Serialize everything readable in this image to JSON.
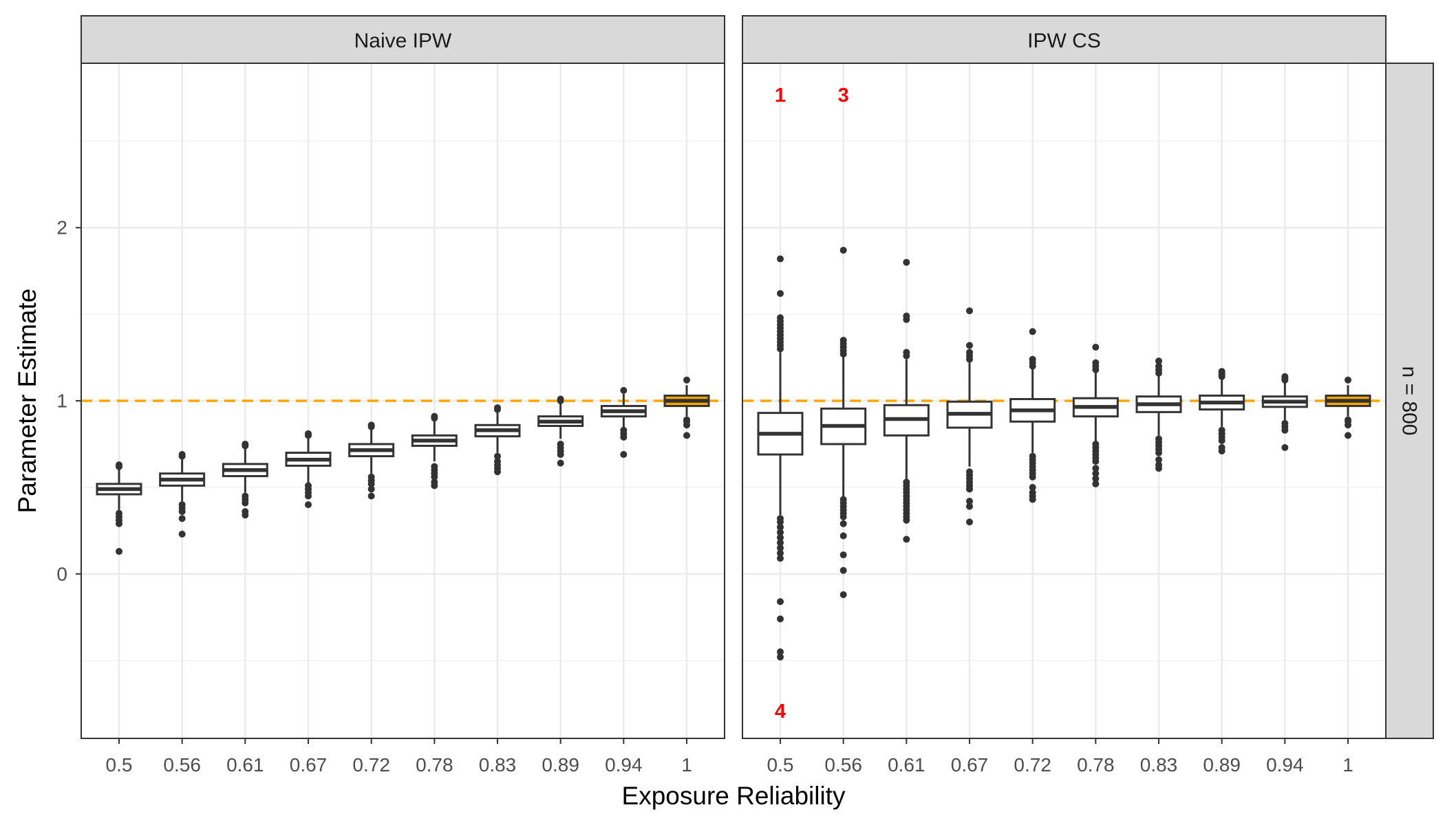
{
  "chart_data": {
    "type": "boxplot",
    "xlabel": "Exposure Reliability",
    "ylabel": "Parameter Estimate",
    "row_facet": "n = 800",
    "categories": [
      "0.5",
      "0.56",
      "0.61",
      "0.67",
      "0.72",
      "0.78",
      "0.83",
      "0.89",
      "0.94",
      "1"
    ],
    "y_ticks": [
      0,
      1,
      2
    ],
    "ylim": [
      -0.95,
      2.95
    ],
    "grid": true,
    "reference_line": {
      "y": 1,
      "color": "#FFA500",
      "style": "dashed"
    },
    "colors": {
      "box_outline": "#333333",
      "box_fill_default": "#ffffff",
      "box_fill_highlight": "#FFA500",
      "annotation": "#FF0000",
      "strip_fill": "#D9D9D9"
    },
    "panels": [
      {
        "title": "Naive IPW",
        "boxes": [
          {
            "category": "0.5",
            "q1": 0.46,
            "median": 0.49,
            "q3": 0.52,
            "whisker_low": 0.37,
            "whisker_high": 0.61,
            "outliers": [
              0.13,
              0.29,
              0.31,
              0.33,
              0.35,
              0.62,
              0.63
            ]
          },
          {
            "category": "0.56",
            "q1": 0.51,
            "median": 0.545,
            "q3": 0.58,
            "whisker_low": 0.42,
            "whisker_high": 0.67,
            "outliers": [
              0.23,
              0.32,
              0.36,
              0.38,
              0.4,
              0.68,
              0.69
            ]
          },
          {
            "category": "0.61",
            "q1": 0.565,
            "median": 0.6,
            "q3": 0.635,
            "whisker_low": 0.47,
            "whisker_high": 0.73,
            "outliers": [
              0.34,
              0.36,
              0.41,
              0.43,
              0.45,
              0.74,
              0.75
            ]
          },
          {
            "category": "0.67",
            "q1": 0.625,
            "median": 0.66,
            "q3": 0.7,
            "whisker_low": 0.52,
            "whisker_high": 0.79,
            "outliers": [
              0.4,
              0.45,
              0.47,
              0.49,
              0.51,
              0.8,
              0.81
            ]
          },
          {
            "category": "0.72",
            "q1": 0.68,
            "median": 0.715,
            "q3": 0.75,
            "whisker_low": 0.58,
            "whisker_high": 0.84,
            "outliers": [
              0.45,
              0.49,
              0.52,
              0.54,
              0.56,
              0.85,
              0.86
            ]
          },
          {
            "category": "0.78",
            "q1": 0.74,
            "median": 0.77,
            "q3": 0.8,
            "whisker_low": 0.65,
            "whisker_high": 0.89,
            "outliers": [
              0.51,
              0.53,
              0.56,
              0.58,
              0.6,
              0.62,
              0.9,
              0.91
            ]
          },
          {
            "category": "0.83",
            "q1": 0.795,
            "median": 0.83,
            "q3": 0.86,
            "whisker_low": 0.7,
            "whisker_high": 0.94,
            "outliers": [
              0.59,
              0.61,
              0.63,
              0.65,
              0.68,
              0.95,
              0.96
            ]
          },
          {
            "category": "0.89",
            "q1": 0.855,
            "median": 0.88,
            "q3": 0.91,
            "whisker_low": 0.78,
            "whisker_high": 0.99,
            "outliers": [
              0.64,
              0.69,
              0.71,
              0.73,
              0.75,
              1.0,
              1.01
            ]
          },
          {
            "category": "0.94",
            "q1": 0.91,
            "median": 0.94,
            "q3": 0.97,
            "whisker_low": 0.84,
            "whisker_high": 1.04,
            "outliers": [
              0.69,
              0.79,
              0.81,
              0.83,
              1.06
            ]
          },
          {
            "category": "1",
            "q1": 0.97,
            "median": 1.0,
            "q3": 1.03,
            "whisker_low": 0.91,
            "whisker_high": 1.09,
            "outliers": [
              0.8,
              0.86,
              0.88,
              0.89,
              1.12
            ],
            "highlight": true
          }
        ],
        "annotations": []
      },
      {
        "title": "IPW CS",
        "boxes": [
          {
            "category": "0.5",
            "q1": 0.69,
            "median": 0.81,
            "q3": 0.93,
            "whisker_low": 0.34,
            "whisker_high": 1.28,
            "outliers": [
              -0.48,
              -0.45,
              -0.26,
              -0.16,
              0.09,
              0.12,
              0.15,
              0.18,
              0.21,
              0.24,
              0.27,
              0.3,
              0.32,
              1.3,
              1.32,
              1.34,
              1.36,
              1.38,
              1.4,
              1.42,
              1.44,
              1.46,
              1.48,
              1.62,
              1.82
            ]
          },
          {
            "category": "0.56",
            "q1": 0.75,
            "median": 0.855,
            "q3": 0.955,
            "whisker_low": 0.44,
            "whisker_high": 1.26,
            "outliers": [
              -0.12,
              0.02,
              0.11,
              0.22,
              0.29,
              0.33,
              0.35,
              0.37,
              0.39,
              0.41,
              0.43,
              1.27,
              1.29,
              1.31,
              1.33,
              1.35,
              1.87
            ]
          },
          {
            "category": "0.61",
            "q1": 0.8,
            "median": 0.895,
            "q3": 0.975,
            "whisker_low": 0.54,
            "whisker_high": 1.24,
            "outliers": [
              0.2,
              0.31,
              0.33,
              0.35,
              0.37,
              0.39,
              0.41,
              0.43,
              0.45,
              0.47,
              0.49,
              0.51,
              0.53,
              1.26,
              1.28,
              1.47,
              1.49,
              1.8
            ]
          },
          {
            "category": "0.67",
            "q1": 0.845,
            "median": 0.925,
            "q3": 0.995,
            "whisker_low": 0.62,
            "whisker_high": 1.22,
            "outliers": [
              0.3,
              0.39,
              0.42,
              0.49,
              0.51,
              0.53,
              0.55,
              0.57,
              0.59,
              1.24,
              1.26,
              1.28,
              1.32,
              1.52
            ]
          },
          {
            "category": "0.72",
            "q1": 0.88,
            "median": 0.945,
            "q3": 1.01,
            "whisker_low": 0.7,
            "whisker_high": 1.19,
            "outliers": [
              0.43,
              0.45,
              0.47,
              0.5,
              0.56,
              0.58,
              0.6,
              0.62,
              0.64,
              0.66,
              0.68,
              1.2,
              1.22,
              1.24,
              1.4
            ]
          },
          {
            "category": "0.78",
            "q1": 0.91,
            "median": 0.965,
            "q3": 1.015,
            "whisker_low": 0.76,
            "whisker_high": 1.17,
            "outliers": [
              0.52,
              0.55,
              0.58,
              0.61,
              0.65,
              0.67,
              0.69,
              0.71,
              0.73,
              0.75,
              1.18,
              1.2,
              1.22,
              1.31
            ]
          },
          {
            "category": "0.83",
            "q1": 0.935,
            "median": 0.98,
            "q3": 1.025,
            "whisker_low": 0.8,
            "whisker_high": 1.15,
            "outliers": [
              0.61,
              0.63,
              0.66,
              0.7,
              0.72,
              0.74,
              0.76,
              0.78,
              1.16,
              1.18,
              1.2,
              1.23
            ]
          },
          {
            "category": "0.89",
            "q1": 0.95,
            "median": 0.99,
            "q3": 1.03,
            "whisker_low": 0.85,
            "whisker_high": 1.13,
            "outliers": [
              0.71,
              0.73,
              0.77,
              0.79,
              0.81,
              0.83,
              1.14,
              1.15,
              1.16,
              1.17
            ]
          },
          {
            "category": "0.94",
            "q1": 0.965,
            "median": 0.995,
            "q3": 1.025,
            "whisker_low": 0.89,
            "whisker_high": 1.11,
            "outliers": [
              0.73,
              0.83,
              0.85,
              0.87,
              1.12,
              1.13,
              1.14
            ]
          },
          {
            "category": "1",
            "q1": 0.97,
            "median": 1.0,
            "q3": 1.03,
            "whisker_low": 0.91,
            "whisker_high": 1.09,
            "outliers": [
              0.8,
              0.86,
              0.88,
              0.89,
              1.12
            ],
            "highlight": true
          }
        ],
        "annotations": [
          {
            "category": "0.5",
            "text": "1",
            "position": "top"
          },
          {
            "category": "0.56",
            "text": "3",
            "position": "top"
          },
          {
            "category": "0.5",
            "text": "4",
            "position": "bottom"
          }
        ]
      }
    ]
  }
}
